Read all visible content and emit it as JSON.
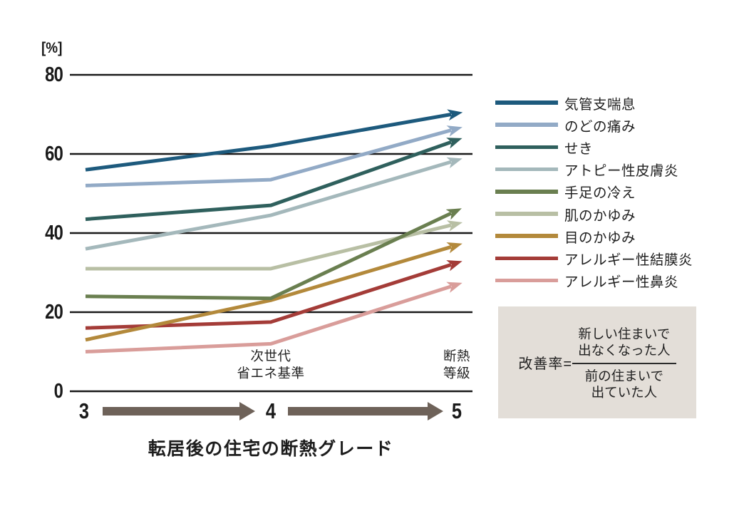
{
  "chart_data": {
    "type": "line",
    "title": "転居後の住宅の断熱グレード",
    "unit_label": "[%]",
    "x": [
      3,
      4,
      5
    ],
    "x_tick_labels": [
      "3",
      "4",
      "5"
    ],
    "x_annotations": [
      {
        "x": 4,
        "lines": [
          "次世代",
          "省エネ基準"
        ]
      },
      {
        "x": 5,
        "lines": [
          "断熱",
          "等級"
        ]
      }
    ],
    "ylim": [
      0,
      80
    ],
    "yticks": [
      0,
      20,
      40,
      60,
      80
    ],
    "grid": "horizontal",
    "legend_position": "right",
    "line_style": "arrow-end",
    "series": [
      {
        "name": "気管支喘息",
        "color": "#1d5a7d",
        "values": [
          56,
          62,
          70
        ]
      },
      {
        "name": "のどの痛み",
        "color": "#92aac6",
        "values": [
          52,
          53.5,
          66
        ]
      },
      {
        "name": "せき",
        "color": "#2f605d",
        "values": [
          43.5,
          47,
          63
        ]
      },
      {
        "name": "アトピー性皮膚炎",
        "color": "#a4b8bb",
        "values": [
          36,
          44.5,
          58
        ]
      },
      {
        "name": "手足の冷え",
        "color": "#6a7f50",
        "values": [
          24,
          23.5,
          45
        ]
      },
      {
        "name": "肌のかゆみ",
        "color": "#b8bfa4",
        "values": [
          31,
          31,
          42
        ]
      },
      {
        "name": "目のかゆみ",
        "color": "#b3893b",
        "values": [
          13,
          23,
          36.5
        ]
      },
      {
        "name": "アレルギー性結膜炎",
        "color": "#a43c38",
        "values": [
          16,
          17.5,
          32
        ]
      },
      {
        "name": "アレルギー性鼻炎",
        "color": "#d99d9a",
        "values": [
          10,
          12,
          26.5
        ]
      }
    ]
  },
  "formula": {
    "label": "改善率=",
    "numerator_lines": [
      "新しい住まいで",
      "出なくなった人"
    ],
    "denominator_lines": [
      "前の住まいで",
      "出ていた人"
    ]
  },
  "colors": {
    "grid": "#1a1a1a",
    "axis_arrow": "#6e6259",
    "formula_box_bg": "#e3ded8",
    "background": "#ffffff"
  }
}
